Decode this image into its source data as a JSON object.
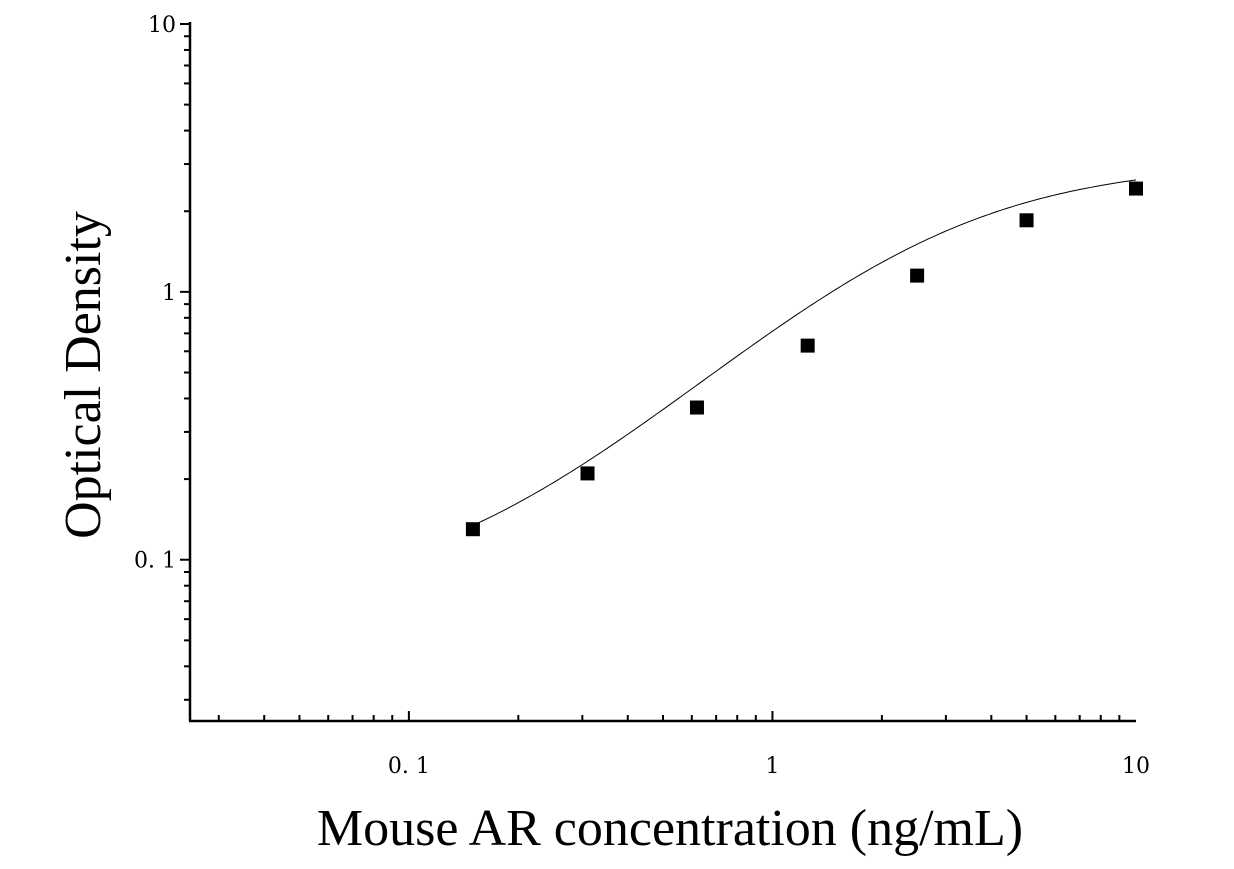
{
  "chart_data": {
    "type": "scatter",
    "xlabel": "Mouse AR concentration (ng/mL)",
    "ylabel": "Optical Density",
    "x_scale": "log",
    "y_scale": "log",
    "xlim": [
      0.025,
      10
    ],
    "ylim": [
      0.025,
      10
    ],
    "x_ticks": [
      {
        "value": 0.1,
        "label": "0. 1"
      },
      {
        "value": 1,
        "label": "1"
      },
      {
        "value": 10,
        "label": "10"
      }
    ],
    "y_ticks": [
      {
        "value": 0.1,
        "label": "0. 1"
      },
      {
        "value": 1,
        "label": "1"
      },
      {
        "value": 10,
        "label": "10"
      }
    ],
    "grid": false,
    "series": [
      {
        "marker": "square",
        "x": [
          0.15,
          0.31,
          0.62,
          1.25,
          2.5,
          5,
          10
        ],
        "y": [
          0.13,
          0.21,
          0.37,
          0.63,
          1.15,
          1.85,
          2.43
        ]
      }
    ],
    "fit": {
      "type": "4PL",
      "a": 0.07,
      "b": 1.33,
      "c": 2.64,
      "d": 3.05,
      "x_range": [
        0.15,
        10
      ]
    }
  }
}
